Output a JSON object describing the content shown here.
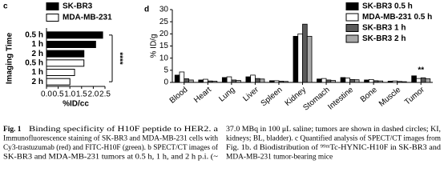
{
  "chart_data": [
    {
      "type": "hbar",
      "panel_label": "c",
      "categories": [
        "0.5 h",
        "1 h",
        "2 h",
        "0.5 h",
        "1 h",
        "2 h"
      ],
      "series": [
        {
          "name": "SK-BR3",
          "color": "#000000",
          "values": [
            2.4,
            2.1,
            1.6,
            null,
            null,
            null
          ]
        },
        {
          "name": "MDA-MB-231",
          "color": "#ffffff",
          "values": [
            null,
            null,
            null,
            1.6,
            1.2,
            1.0
          ]
        }
      ],
      "xlim": [
        0,
        2.5
      ],
      "xticks": [
        {
          "value": 0,
          "label": "0.0"
        },
        0.5,
        {
          "value": 1,
          "label": "1.0"
        },
        1.5,
        {
          "value": 2,
          "label": "2.0"
        },
        2.5
      ],
      "xlabel": "%ID/cc",
      "ylabel": "Imaging Time",
      "annotation": "****"
    },
    {
      "type": "bar",
      "panel_label": "d",
      "categories": [
        "Blood",
        "Heart",
        "Lung",
        "Liver",
        "Spleen",
        "Kidney",
        "Stomach",
        "Intestine",
        "Bone",
        "Muscle",
        "Tumor"
      ],
      "series": [
        {
          "name": "SK-BR3 0.5 h",
          "color": "#000000",
          "values": [
            3.0,
            1.0,
            2.0,
            2.3,
            0.7,
            19,
            1.4,
            2.0,
            1.0,
            0.5,
            2.7
          ]
        },
        {
          "name": "MDA-MB-231 0.5 h",
          "color": "#ffffff",
          "values": [
            4.3,
            1.3,
            2.3,
            3.0,
            0.7,
            20,
            1.6,
            1.8,
            1.2,
            0.6,
            1.6
          ]
        },
        {
          "name": "SK-BR3 1 h",
          "color": "#5a5a5a",
          "values": [
            1.5,
            0.6,
            1.0,
            1.6,
            0.5,
            24,
            1.0,
            1.2,
            0.7,
            0.4,
            1.9
          ]
        },
        {
          "name": "SK-BR3 2 h",
          "color": "#a8a8a8",
          "values": [
            1.0,
            0.5,
            0.8,
            1.4,
            0.4,
            19,
            0.8,
            1.1,
            0.6,
            0.3,
            1.5
          ]
        }
      ],
      "ylim": [
        0,
        30
      ],
      "yticks": [
        0,
        5,
        10,
        15,
        20,
        25,
        30
      ],
      "ylabel": "% ID/g",
      "annotation": "**"
    }
  ],
  "caption": {
    "label": "Fig. 1",
    "left_lines": [
      "Binding specificity of H10F peptide to HER2. a",
      "Immunofluorescence staining of SK-BR3 and MDA-MB-231 cells with",
      "Cy3-trastuzumab (red) and FITC-H10F (green). b SPECT/CT images of",
      "SK-BR3 and MDA-MB-231 tumors at 0.5 h, 1 h, and 2 h p.i. (~"
    ],
    "right_lines": [
      "37.0 MBq in 100 μL saline; tumors are shown in dashed circles; KI,",
      "kidneys; BL, bladder). c Quantified analysis of SPECT/CT images from",
      "Fig. 1b. d Biodistribution of ⁹⁹ᵐTc-HYNIC-H10F in SK-BR3 and",
      "MDA-MB-231 tumor-bearing mice"
    ]
  }
}
